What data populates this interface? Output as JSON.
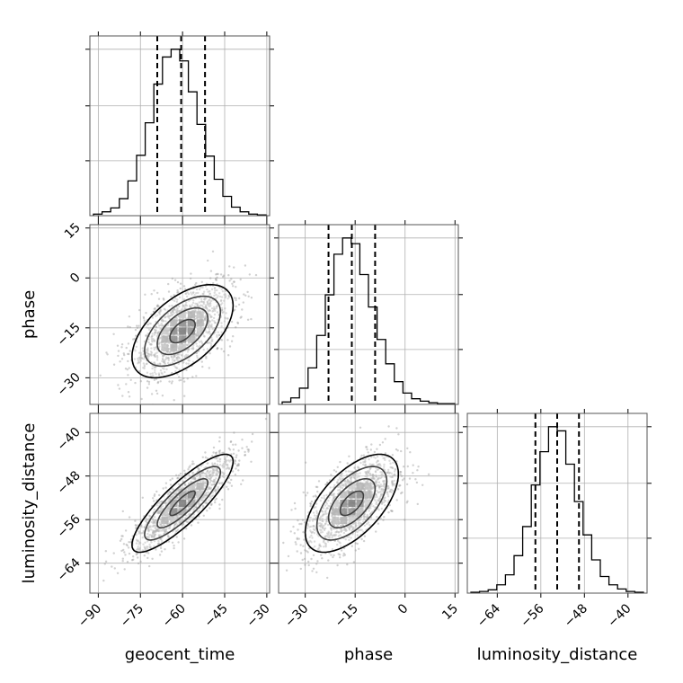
{
  "chart_data": {
    "type": "corner",
    "parameters": [
      {
        "name": "geocent_time",
        "label": "geocent_time",
        "range": [
          -93,
          -29
        ],
        "ticks": [
          -90,
          -75,
          -60,
          -45,
          -30
        ],
        "tick_labels": [
          "−90",
          "−75",
          "−60",
          "−45",
          "−30"
        ],
        "mean": -60,
        "sd": 9,
        "quantiles": [
          -69,
          -60.5,
          -52
        ]
      },
      {
        "name": "phase",
        "label": "phase",
        "range": [
          -38,
          16
        ],
        "ticks": [
          -30,
          -15,
          0,
          15
        ],
        "tick_labels": [
          "−30",
          "−15",
          "0",
          "15"
        ],
        "mean": -16,
        "sd": 7,
        "quantiles": [
          -23,
          -16,
          -9
        ]
      },
      {
        "name": "luminosity_distance",
        "label": "luminosity_distance",
        "range": [
          -69.5,
          -36.5
        ],
        "ticks": [
          -64,
          -56,
          -48,
          -40
        ],
        "tick_labels": [
          "−64",
          "−56",
          "−48",
          "−40"
        ],
        "mean": -53,
        "sd": 4.5,
        "quantiles": [
          -57,
          -53,
          -49
        ]
      }
    ],
    "histograms": {
      "geocent_time": [
        2,
        5,
        10,
        22,
        45,
        78,
        120,
        170,
        205,
        215,
        200,
        160,
        118,
        77,
        47,
        25,
        11,
        5,
        2,
        1
      ],
      "phase": [
        3,
        8,
        20,
        45,
        85,
        135,
        185,
        205,
        198,
        160,
        120,
        80,
        50,
        28,
        14,
        7,
        4,
        2,
        1,
        1
      ],
      "luminosity_distance": [
        1,
        2,
        4,
        10,
        22,
        45,
        80,
        130,
        170,
        200,
        195,
        155,
        110,
        70,
        40,
        20,
        10,
        5,
        2,
        1
      ]
    },
    "correlations": {
      "geocent_time|phase": 0.55,
      "geocent_time|luminosity_distance": 0.85,
      "phase|luminosity_distance": 0.6
    },
    "grid": true,
    "colors": {
      "hist": "#000000",
      "points": "#9a9a9a",
      "contour": "#000000",
      "quantile": "#000000"
    }
  }
}
